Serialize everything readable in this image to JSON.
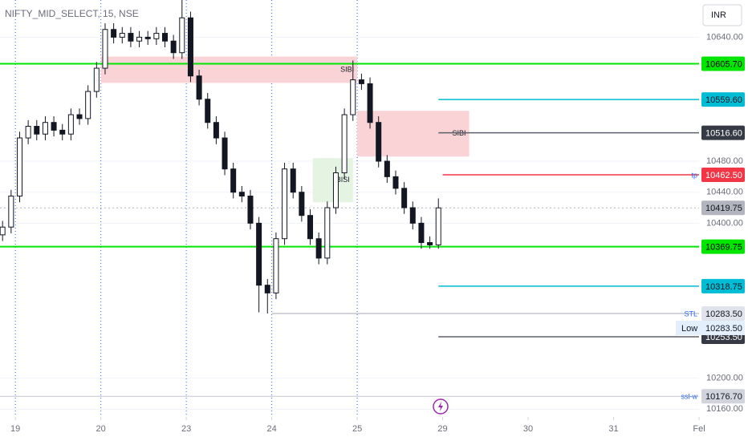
{
  "chart_data": {
    "type": "candlestick",
    "title": "NIFTY_MID_SELECT, 15, NSE",
    "currency_button": "INR",
    "xlim": [
      -0.18,
      8.0
    ],
    "ylim": [
      10150,
      10688
    ],
    "xticks": [
      {
        "value": 0,
        "label": "19"
      },
      {
        "value": 1,
        "label": "20"
      },
      {
        "value": 2,
        "label": "23"
      },
      {
        "value": 3,
        "label": "24"
      },
      {
        "value": 4,
        "label": "25"
      },
      {
        "value": 5,
        "label": "29"
      },
      {
        "value": 6,
        "label": "30"
      },
      {
        "value": 7,
        "label": "31"
      },
      {
        "value": 8,
        "label": "Fel"
      }
    ],
    "yticks": [
      {
        "value": 10640,
        "label": "10640.00"
      },
      {
        "value": 10480,
        "label": "10480.00"
      },
      {
        "value": 10440,
        "label": "10440.00"
      },
      {
        "value": 10400,
        "label": "10400.00"
      },
      {
        "value": 10200,
        "label": "10200.00"
      },
      {
        "value": 10160,
        "label": "10160.00"
      }
    ],
    "session_breaks": [
      0,
      1,
      2,
      3,
      4
    ],
    "grid": true,
    "up_color": "#ffffff",
    "down_color": "#131722",
    "x": [
      -0.15,
      -0.05,
      0.05,
      0.15,
      0.25,
      0.35,
      0.45,
      0.55,
      0.65,
      0.75,
      0.85,
      0.95,
      1.05,
      1.15,
      1.25,
      1.35,
      1.45,
      1.55,
      1.65,
      1.75,
      1.85,
      1.95,
      2.05,
      2.15,
      2.25,
      2.35,
      2.45,
      2.55,
      2.65,
      2.75,
      2.85,
      2.95,
      3.05,
      3.15,
      3.25,
      3.35,
      3.45,
      3.55,
      3.65,
      3.75,
      3.85,
      3.95,
      4.05,
      4.15,
      4.25,
      4.35,
      4.45,
      4.55,
      4.65,
      4.75,
      4.85,
      4.95
    ],
    "open": [
      10385,
      10395,
      10435,
      10510,
      10525,
      10515,
      10530,
      10520,
      10515,
      10540,
      10535,
      10570,
      10600,
      10650,
      10640,
      10645,
      10635,
      10640,
      10638,
      10645,
      10635,
      10620,
      10665,
      10590,
      10560,
      10530,
      10510,
      10470,
      10440,
      10435,
      10400,
      10320,
      10310,
      10380,
      10470,
      10440,
      10410,
      10380,
      10355,
      10420,
      10465,
      10540,
      10585,
      10580,
      10530,
      10480,
      10460,
      10445,
      10420,
      10400,
      10375,
      10372
    ],
    "high": [
      10403,
      10443,
      10518,
      10533,
      10533,
      10538,
      10538,
      10528,
      10548,
      10548,
      10578,
      10608,
      10658,
      10658,
      10653,
      10653,
      10648,
      10648,
      10653,
      10653,
      10643,
      10688,
      10673,
      10598,
      10568,
      10538,
      10518,
      10478,
      10448,
      10443,
      10408,
      10328,
      10388,
      10478,
      10478,
      10448,
      10418,
      10388,
      10428,
      10473,
      10548,
      10610,
      10593,
      10588,
      10538,
      10488,
      10468,
      10453,
      10428,
      10408,
      10383,
      10432
    ],
    "low": [
      10377,
      10387,
      10427,
      10502,
      10507,
      10507,
      10512,
      10507,
      10507,
      10527,
      10527,
      10562,
      10592,
      10632,
      10632,
      10627,
      10627,
      10630,
      10630,
      10627,
      10612,
      10612,
      10582,
      10552,
      10522,
      10502,
      10462,
      10432,
      10427,
      10392,
      10285,
      10283.5,
      10302,
      10372,
      10432,
      10402,
      10372,
      10347,
      10347,
      10412,
      10457,
      10532,
      10572,
      10522,
      10472,
      10452,
      10437,
      10412,
      10392,
      10367,
      10367,
      10367
    ],
    "close": [
      10395,
      10435,
      10510,
      10525,
      10515,
      10530,
      10520,
      10515,
      10540,
      10535,
      10570,
      10600,
      10650,
      10640,
      10645,
      10635,
      10640,
      10638,
      10645,
      10635,
      10620,
      10665,
      10590,
      10560,
      10530,
      10510,
      10470,
      10440,
      10435,
      10400,
      10320,
      10310,
      10380,
      10470,
      10440,
      10410,
      10380,
      10355,
      10420,
      10465,
      10540,
      10585,
      10580,
      10530,
      10480,
      10460,
      10445,
      10420,
      10400,
      10375,
      10372,
      10419.75
    ],
    "zones": [
      {
        "label": "SIBI",
        "x": [
          1,
          4
        ],
        "y": [
          10581,
          10615
        ],
        "color": "#f9d3d6"
      },
      {
        "label": "SIBI",
        "x": [
          4,
          5.31
        ],
        "y": [
          10486,
          10545
        ],
        "color": "#f9d3d6"
      },
      {
        "label": "BISI",
        "x": [
          3.48,
          3.95
        ],
        "y": [
          10427,
          10484
        ],
        "color": "#e4f3e2"
      }
    ],
    "levels": [
      {
        "price": 10605.7,
        "label": "10605.70",
        "color": "#00e600",
        "label_bg": "#00e600",
        "label_color": "#000000",
        "width": 2
      },
      {
        "price": 10559.6,
        "label": "10559.60",
        "color": "#00bcd4",
        "label_bg": "#00bcd4",
        "label_color": "#131722",
        "start_x": 4.95,
        "width": 1.5
      },
      {
        "price": 10516.6,
        "label": "10516.60",
        "color": "#5d606b",
        "label_bg": "#363a45",
        "label_color": "#ffffff",
        "start_x": 4.95,
        "width": 1.5
      },
      {
        "price": 10462.5,
        "label": "10462.50",
        "tag": "tp",
        "color": "#f23645",
        "label_bg": "#f23645",
        "label_color": "#ffffff",
        "start_x": 5,
        "width": 1.5
      },
      {
        "price": 10419.75,
        "label": "10419.75",
        "color": "#b2b5be",
        "label_bg": "#b2b5be",
        "label_color": "#131722",
        "dashed": true,
        "width": 1
      },
      {
        "price": 10369.75,
        "label": "10369.75",
        "color": "#00e600",
        "label_bg": "#00e600",
        "label_color": "#000000",
        "width": 2
      },
      {
        "price": 10318.75,
        "label": "10318.75",
        "color": "#00bcd4",
        "label_bg": "#00bcd4",
        "label_color": "#131722",
        "start_x": 4.95,
        "width": 1.5
      },
      {
        "price": 10283.5,
        "label": "10283.50",
        "tag": "STL",
        "color": "#c3c6ce",
        "label_bg": "#e0e3eb",
        "label_color": "#131722",
        "start_x": 3,
        "width": 1.5
      },
      {
        "price": 10253.5,
        "label": "10253.50",
        "color": "#5d606b",
        "label_bg": "#363a45",
        "label_color": "#ffffff",
        "start_x": 4.95,
        "width": 1.5
      },
      {
        "price": 10176.7,
        "label": "10176.70",
        "tag": "ssl-w",
        "color": "#c3c6ce",
        "label_bg": "#d1d4dc",
        "label_color": "#131722",
        "width": 1
      }
    ],
    "low_row": {
      "label": "Low",
      "price": 10283.5,
      "price_label": "10283.50"
    }
  }
}
